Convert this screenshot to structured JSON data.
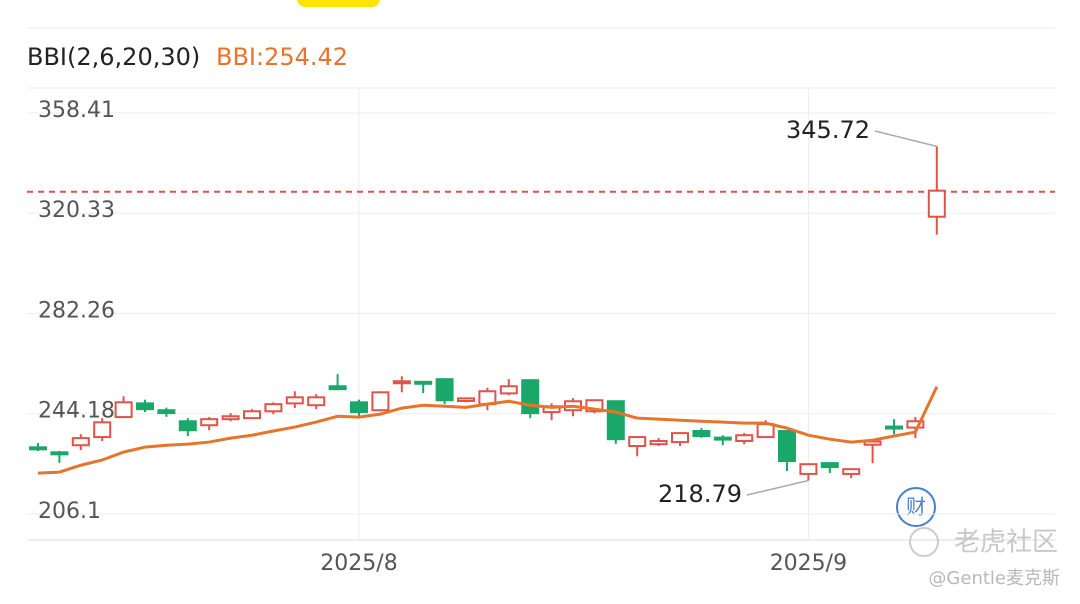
{
  "chart_data": {
    "type": "candlestick",
    "indicator_title": "BBI(2,6,20,30)",
    "indicator_value_label": "BBI:254.42",
    "categories": [
      null,
      null,
      null,
      null,
      null,
      null,
      null,
      null,
      null,
      null,
      null,
      null,
      null,
      null,
      null,
      "2025/8",
      null,
      null,
      null,
      null,
      null,
      null,
      null,
      null,
      null,
      null,
      null,
      null,
      null,
      null,
      null,
      null,
      null,
      null,
      null,
      null,
      "2025/9",
      null,
      null,
      null,
      null,
      null,
      null
    ],
    "open": [
      231.4,
      229.5,
      232.2,
      235.3,
      242.9,
      248.1,
      245.5,
      241.3,
      239.8,
      242.1,
      242.5,
      245.1,
      248.1,
      247.4,
      254.6,
      248.5,
      245.5,
      256.0,
      256.3,
      257.3,
      249.0,
      247.8,
      251.9,
      256.9,
      244.8,
      245.5,
      245.1,
      248.9,
      231.9,
      232.6,
      233.4,
      237.6,
      235.1,
      233.8,
      235.3,
      237.6,
      221.3,
      225.4,
      221.3,
      232.4,
      239.3,
      238.9,
      319.0
    ],
    "high": [
      233.0,
      230.0,
      236.4,
      242.5,
      250.8,
      249.5,
      246.5,
      242.5,
      242.9,
      244.4,
      245.9,
      248.5,
      252.7,
      251.6,
      259.2,
      249.5,
      252.7,
      258.4,
      256.5,
      257.3,
      250.3,
      254.0,
      257.3,
      257.3,
      248.1,
      250.1,
      249.3,
      249.3,
      235.7,
      234.9,
      237.2,
      238.7,
      236.0,
      236.8,
      241.7,
      237.9,
      225.4,
      225.4,
      223.1,
      234.1,
      242.1,
      242.9,
      345.72
    ],
    "low": [
      230.0,
      225.5,
      230.4,
      233.8,
      242.5,
      244.8,
      243.0,
      235.7,
      237.9,
      241.3,
      242.5,
      244.0,
      246.3,
      245.9,
      253.1,
      242.5,
      245.0,
      252.3,
      252.0,
      247.8,
      248.5,
      245.5,
      251.2,
      242.5,
      241.7,
      243.2,
      244.4,
      232.7,
      228.0,
      231.9,
      231.9,
      235.0,
      232.2,
      232.6,
      235.0,
      222.4,
      218.79,
      221.6,
      219.7,
      225.4,
      236.4,
      234.9,
      312.2
    ],
    "close": [
      231.0,
      228.8,
      234.9,
      240.9,
      248.5,
      245.9,
      244.4,
      237.9,
      242.1,
      243.2,
      245.1,
      247.8,
      250.4,
      250.4,
      253.5,
      244.8,
      252.3,
      256.5,
      256.0,
      249.3,
      250.0,
      252.7,
      254.6,
      244.4,
      247.0,
      248.9,
      249.3,
      234.5,
      235.3,
      233.8,
      236.8,
      235.7,
      234.7,
      236.0,
      240.2,
      226.2,
      225.0,
      223.9,
      223.1,
      233.6,
      238.9,
      241.3,
      328.9
    ],
    "up_color": "#e0524a",
    "down_color": "#1aa86a",
    "series": [
      {
        "name": "BBI(2,6,20,30)",
        "color": "#e8742c",
        "values": [
          221.6,
          222.0,
          224.6,
          226.6,
          229.6,
          231.5,
          232.2,
          232.6,
          233.4,
          234.9,
          236.0,
          237.6,
          239.1,
          241.0,
          243.2,
          242.9,
          244.0,
          246.3,
          247.4,
          247.0,
          246.6,
          247.8,
          248.9,
          247.4,
          246.6,
          247.0,
          245.9,
          244.8,
          242.5,
          242.1,
          241.7,
          241.3,
          241.0,
          240.6,
          240.6,
          238.7,
          236.0,
          234.5,
          233.4,
          234.1,
          235.7,
          237.2,
          254.42
        ]
      }
    ],
    "price_line": 328.5,
    "price_line_color": "#e0524a",
    "ylim": [
      196.2,
      367.9
    ],
    "yticks": [
      358.41,
      320.33,
      282.26,
      244.18,
      206.1
    ],
    "grid": true,
    "watermark": "老虎社区",
    "credit": "@Gentle麦克斯",
    "badge": "财"
  }
}
